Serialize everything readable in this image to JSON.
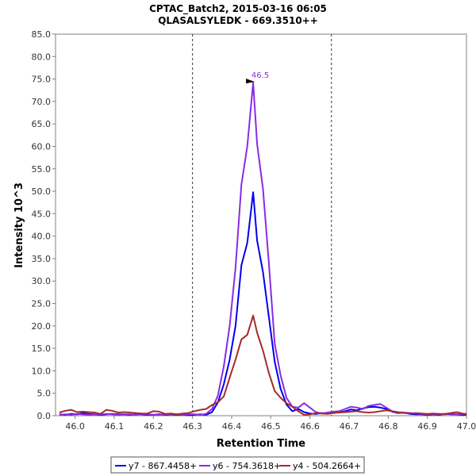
{
  "chart_data": {
    "type": "line",
    "title": "CPTAC_Batch2, 2015-03-16 06:05",
    "subtitle": "QLASALSYLEDK - 669.3510++",
    "xlabel": "Retention Time",
    "ylabel": "Intensity 10^3",
    "xlim": [
      45.95,
      47.0
    ],
    "ylim": [
      0,
      85
    ],
    "x_ticks": [
      "46.0",
      "46.1",
      "46.2",
      "46.3",
      "46.4",
      "46.5",
      "46.6",
      "46.7",
      "46.8",
      "46.9",
      "47.0"
    ],
    "y_ticks": [
      "0.0",
      "5.0",
      "10.0",
      "15.0",
      "20.0",
      "25.0",
      "30.0",
      "35.0",
      "40.0",
      "45.0",
      "50.0",
      "55.0",
      "60.0",
      "65.0",
      "70.0",
      "75.0",
      "80.0",
      "85.0"
    ],
    "boundaries": [
      46.3,
      46.655
    ],
    "peak_annotation": {
      "x": 46.465,
      "y": 74.2,
      "label": "46.5",
      "color": "#8a2be2"
    },
    "x": [
      45.96,
      45.975,
      45.99,
      46.005,
      46.02,
      46.035,
      46.05,
      46.065,
      46.08,
      46.095,
      46.11,
      46.125,
      46.14,
      46.155,
      46.17,
      46.185,
      46.2,
      46.215,
      46.23,
      46.245,
      46.26,
      46.275,
      46.29,
      46.305,
      46.32,
      46.335,
      46.35,
      46.365,
      46.38,
      46.395,
      46.41,
      46.425,
      46.44,
      46.455,
      46.465,
      46.48,
      46.495,
      46.51,
      46.525,
      46.54,
      46.555,
      46.57,
      46.585,
      46.6,
      46.615,
      46.63,
      46.645,
      46.66,
      46.675,
      46.69,
      46.705,
      46.72,
      46.735,
      46.75,
      46.765,
      46.78,
      46.795,
      46.81,
      46.825,
      46.84,
      46.855,
      46.87,
      46.885,
      46.9,
      46.915,
      46.93,
      46.945,
      46.96,
      46.975,
      46.99,
      47.0
    ],
    "series": [
      {
        "name": "y7 - 867.4458+",
        "color": "#0000ee",
        "values": [
          0.3,
          0.2,
          0.4,
          0.3,
          0.6,
          0.4,
          0.3,
          0.2,
          0.3,
          0.4,
          0.3,
          0.3,
          0.2,
          0.3,
          0.3,
          0.2,
          0.2,
          0.3,
          0.2,
          0.3,
          0.2,
          0.2,
          0.1,
          0.2,
          0.3,
          0.2,
          0.8,
          3.0,
          7.0,
          12.5,
          20.0,
          33.5,
          38.5,
          49.8,
          39.0,
          32.0,
          22.0,
          12.0,
          6.0,
          2.5,
          1.0,
          1.5,
          0.8,
          0.5,
          0.4,
          0.6,
          0.5,
          0.8,
          0.7,
          1.0,
          1.4,
          1.2,
          1.6,
          1.9,
          2.0,
          1.8,
          1.5,
          0.9,
          0.6,
          0.7,
          0.4,
          0.3,
          0.3,
          0.2,
          0.3,
          0.2,
          0.4,
          0.3,
          0.3,
          0.2,
          0.2
        ]
      },
      {
        "name": "y6 - 754.3618+",
        "color": "#8a2be2",
        "values": [
          0.2,
          0.3,
          0.2,
          0.4,
          0.3,
          0.2,
          0.3,
          0.3,
          0.4,
          0.3,
          0.2,
          0.3,
          0.3,
          0.2,
          0.4,
          0.3,
          0.2,
          0.2,
          0.3,
          0.4,
          0.3,
          0.2,
          0.3,
          0.3,
          0.2,
          0.4,
          1.5,
          4.5,
          11.0,
          20.0,
          33.0,
          51.5,
          60.0,
          74.2,
          60.5,
          50.5,
          34.0,
          16.0,
          9.0,
          4.0,
          2.0,
          1.8,
          2.8,
          1.8,
          0.8,
          0.5,
          0.7,
          0.9,
          1.0,
          1.5,
          2.0,
          1.8,
          1.5,
          2.2,
          2.4,
          2.6,
          1.8,
          1.0,
          0.8,
          0.7,
          0.6,
          0.5,
          0.4,
          0.3,
          0.4,
          0.3,
          0.3,
          0.4,
          0.3,
          0.4,
          0.3
        ]
      },
      {
        "name": "y4 - 504.2664+",
        "color": "#a52a2a",
        "values": [
          0.7,
          1.1,
          1.3,
          0.8,
          0.9,
          0.8,
          0.7,
          0.4,
          1.3,
          1.1,
          0.7,
          0.8,
          0.7,
          0.6,
          0.5,
          0.5,
          1.0,
          0.9,
          0.4,
          0.5,
          0.3,
          0.5,
          0.6,
          1.0,
          1.3,
          1.5,
          2.4,
          3.0,
          4.3,
          8.5,
          12.5,
          17.0,
          18.0,
          22.3,
          18.5,
          14.5,
          9.5,
          5.5,
          4.0,
          2.8,
          2.0,
          1.0,
          0.2,
          0.3,
          0.6,
          0.5,
          0.4,
          0.6,
          0.7,
          0.8,
          0.9,
          1.0,
          0.8,
          0.7,
          0.8,
          1.0,
          1.2,
          1.0,
          0.7,
          0.6,
          0.5,
          0.6,
          0.5,
          0.4,
          0.5,
          0.4,
          0.4,
          0.6,
          0.8,
          0.5,
          0.4
        ]
      }
    ]
  }
}
